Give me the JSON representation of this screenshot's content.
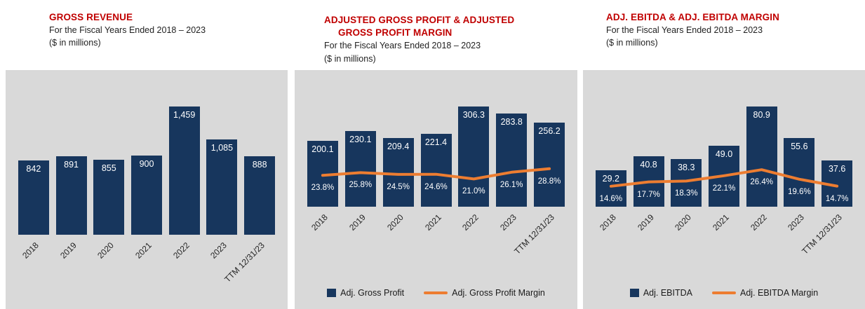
{
  "colors": {
    "bar": "#17365D",
    "line": "#ED7D31",
    "title": "#C00000",
    "panel_bg": "#D9D9D9"
  },
  "chart_data": [
    {
      "type": "bar",
      "title_lines": [
        "GROSS REVENUE",
        ""
      ],
      "subtitle": "For the Fiscal Years Ended 2018 – 2023",
      "units_label": "($ in millions)",
      "categories": [
        "2018",
        "2019",
        "2020",
        "2021",
        "2022",
        "2023",
        "TTM 12/31/23"
      ],
      "series": [
        {
          "name": "Gross Revenue",
          "kind": "bar",
          "values": [
            842,
            891,
            855,
            900,
            1459,
            1085,
            888
          ],
          "data_labels": [
            "842",
            "891",
            "855",
            "900",
            "1,459",
            "1,085",
            "888"
          ]
        }
      ],
      "ylim": [
        0,
        1600
      ],
      "grid": false,
      "legend": []
    },
    {
      "type": "bar",
      "title_lines": [
        "ADJUSTED GROSS PROFIT & ADJUSTED",
        "GROSS PROFIT MARGIN"
      ],
      "subtitle": "For the Fiscal Years Ended 2018 – 2023",
      "units_label": "($ in millions)",
      "categories": [
        "2018",
        "2019",
        "2020",
        "2021",
        "2022",
        "2023",
        "TTM 12/31/23"
      ],
      "series": [
        {
          "name": "Adj. Gross Profit",
          "kind": "bar",
          "values": [
            200.1,
            230.1,
            209.4,
            221.4,
            306.3,
            283.8,
            256.2
          ],
          "data_labels": [
            "200.1",
            "230.1",
            "209.4",
            "221.4",
            "306.3",
            "283.8",
            "256.2"
          ]
        },
        {
          "name": "Adj. Gross Profit Margin",
          "kind": "line",
          "values": [
            23.8,
            25.8,
            24.5,
            24.6,
            21.0,
            26.1,
            28.8
          ],
          "data_labels": [
            "23.8%",
            "25.8%",
            "24.5%",
            "24.6%",
            "21.0%",
            "26.1%",
            "28.8%"
          ]
        }
      ],
      "ylim": [
        0,
        340
      ],
      "y2lim": [
        0,
        60
      ],
      "grid": false,
      "legend": [
        "Adj. Gross Profit",
        "Adj. Gross Profit Margin"
      ]
    },
    {
      "type": "bar",
      "title_lines": [
        "ADJ. EBITDA & ADJ. EBITDA MARGIN",
        ""
      ],
      "subtitle": "For the Fiscal Years Ended 2018 – 2023",
      "units_label": "($ in millions)",
      "categories": [
        "2018",
        "2019",
        "2020",
        "2021",
        "2022",
        "2023",
        "TTM 12/31/23"
      ],
      "series": [
        {
          "name": "Adj. EBITDA",
          "kind": "bar",
          "values": [
            29.2,
            40.8,
            38.3,
            49.0,
            80.9,
            55.6,
            37.6
          ],
          "data_labels": [
            "29.2",
            "40.8",
            "38.3",
            "49.0",
            "80.9",
            "55.6",
            "37.6"
          ]
        },
        {
          "name": "Adj. EBITDA Margin",
          "kind": "line",
          "values": [
            14.6,
            17.7,
            18.3,
            22.1,
            26.4,
            19.6,
            14.7
          ],
          "data_labels": [
            "14.6%",
            "17.7%",
            "18.3%",
            "22.1%",
            "26.4%",
            "19.6%",
            "14.7%"
          ]
        }
      ],
      "ylim": [
        0,
        90
      ],
      "y2lim": [
        0,
        60
      ],
      "grid": false,
      "legend": [
        "Adj. EBITDA",
        "Adj. EBITDA Margin"
      ]
    }
  ]
}
